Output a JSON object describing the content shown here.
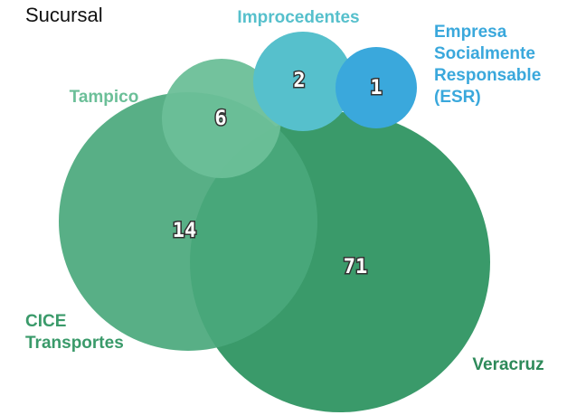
{
  "chart_data": {
    "type": "bubble",
    "title": "Sucursal",
    "series": [
      {
        "name": "Veracruz",
        "value": 71,
        "color": "#3a9a6a"
      },
      {
        "name": "CICE Transportes",
        "value": 14,
        "color": "#4aa87c"
      },
      {
        "name": "Tampico",
        "value": 6,
        "color": "#6bbf98"
      },
      {
        "name": "Improcedentes",
        "value": 2,
        "color": "#56c0cc"
      },
      {
        "name": "Empresa Socialmente Responsable (ESR)",
        "value": 1,
        "color": "#3aa8dc"
      }
    ]
  }
}
